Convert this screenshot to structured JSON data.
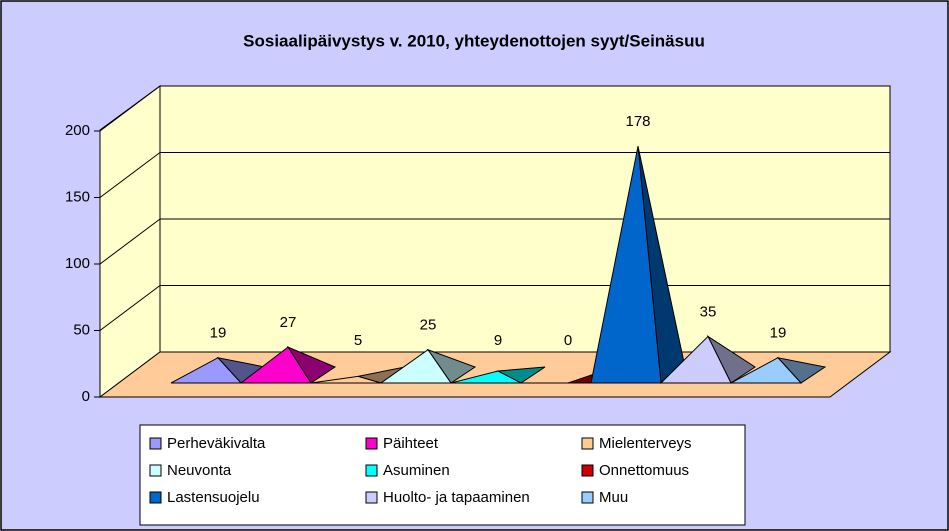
{
  "chart_data": {
    "type": "pyramid",
    "title": "Sosiaalipäivystys v. 2010, yhteydenottojen syyt/Seinäsuu",
    "series": [
      {
        "name": "Perheväkivalta",
        "color": "#9999ff",
        "values": [
          19
        ]
      },
      {
        "name": "Päihteet",
        "color": "#ff00cc",
        "values": [
          27
        ]
      },
      {
        "name": "Mielenterveys",
        "color": "#ffcc99",
        "values": [
          5
        ]
      },
      {
        "name": "Neuvonta",
        "color": "#ccffff",
        "values": [
          25
        ]
      },
      {
        "name": "Asuminen",
        "color": "#00ffff",
        "values": [
          9
        ]
      },
      {
        "name": "Onnettomuus",
        "color": "#cc0000",
        "values": [
          0
        ]
      },
      {
        "name": "Lastensuojelu",
        "color": "#0066cc",
        "values": [
          178
        ]
      },
      {
        "name": "Huolto- ja tapaaminen",
        "color": "#ccccff",
        "values": [
          35
        ]
      },
      {
        "name": "Muu",
        "color": "#99ccff",
        "values": [
          19
        ]
      }
    ],
    "ylim": [
      0,
      200
    ],
    "yticks": [
      0,
      50,
      100,
      150,
      200
    ],
    "grid": true,
    "legend": "bottom"
  }
}
